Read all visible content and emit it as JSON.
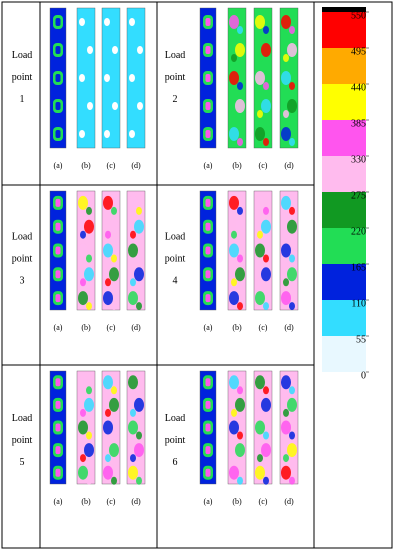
{
  "cells": [
    {
      "lines": [
        "Load",
        "point",
        "1"
      ],
      "sub_labels": [
        "(a)",
        "(b)",
        "(c)",
        "(d)"
      ]
    },
    {
      "lines": [
        "Load",
        "point",
        "2"
      ],
      "sub_labels": [
        "(a)",
        "(b)",
        "(c)",
        "(d)"
      ]
    },
    {
      "lines": [
        "Load",
        "point",
        "3"
      ],
      "sub_labels": [
        "(a)",
        "(b)",
        "(c)",
        "(d)"
      ]
    },
    {
      "lines": [
        "Load",
        "point",
        "4"
      ],
      "sub_labels": [
        "(a)",
        "(b)",
        "(c)",
        "(d)"
      ]
    },
    {
      "lines": [
        "Load",
        "point",
        "5"
      ],
      "sub_labels": [
        "(a)",
        "(b)",
        "(c)",
        "(d)"
      ]
    },
    {
      "lines": [
        "Load",
        "point",
        "6"
      ],
      "sub_labels": [
        "(a)",
        "(b)",
        "(c)",
        "(d)"
      ]
    }
  ],
  "colorbar": {
    "ticks": [
      0,
      55,
      110,
      165,
      220,
      275,
      330,
      385,
      440,
      495,
      550
    ],
    "colors": [
      "#e8f8ff",
      "#33ddff",
      "#0022dd",
      "#22dd55",
      "#119922",
      "#ffbbee",
      "#ff55ee",
      "#ffff00",
      "#ffaa00",
      "#ff0000"
    ],
    "over_color": "#000000"
  }
}
